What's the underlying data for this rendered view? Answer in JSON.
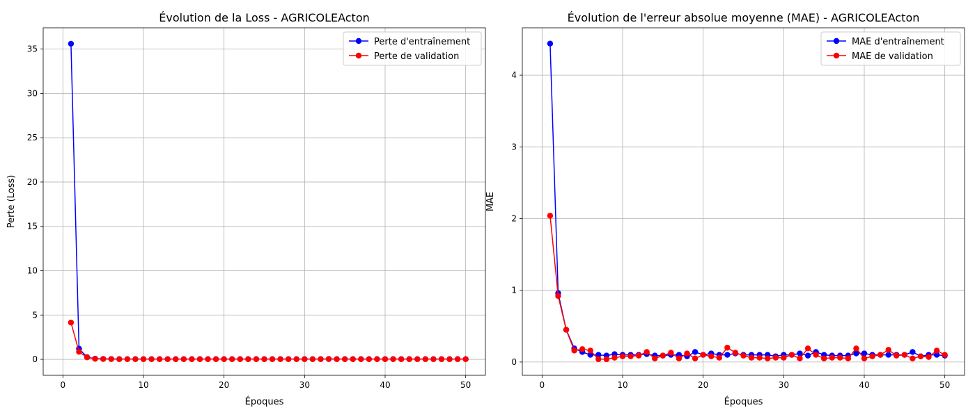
{
  "chart_data": [
    {
      "type": "line",
      "title": "Évolution de la Loss - AGRICOLEActon",
      "xlabel": "Époques",
      "ylabel": "Perte (Loss)",
      "xlim": [
        -2.45,
        52.45
      ],
      "ylim": [
        -1.8,
        37.4
      ],
      "xticks": [
        0,
        10,
        20,
        30,
        40,
        50
      ],
      "yticks": [
        0,
        5,
        10,
        15,
        20,
        25,
        30,
        35
      ],
      "grid": true,
      "legend": "top-right",
      "x": [
        1,
        2,
        3,
        4,
        5,
        6,
        7,
        8,
        9,
        10,
        11,
        12,
        13,
        14,
        15,
        16,
        17,
        18,
        19,
        20,
        21,
        22,
        23,
        24,
        25,
        26,
        27,
        28,
        29,
        30,
        31,
        32,
        33,
        34,
        35,
        36,
        37,
        38,
        39,
        40,
        41,
        42,
        43,
        44,
        45,
        46,
        47,
        48,
        49,
        50
      ],
      "series": [
        {
          "name": "Perte d'entraînement",
          "color": "#0000ff",
          "values": [
            35.6,
            1.2,
            0.25,
            0.08,
            0.05,
            0.04,
            0.03,
            0.03,
            0.03,
            0.03,
            0.03,
            0.03,
            0.03,
            0.03,
            0.03,
            0.03,
            0.03,
            0.03,
            0.03,
            0.03,
            0.03,
            0.03,
            0.03,
            0.03,
            0.03,
            0.03,
            0.03,
            0.03,
            0.03,
            0.03,
            0.03,
            0.03,
            0.03,
            0.03,
            0.03,
            0.03,
            0.03,
            0.03,
            0.03,
            0.03,
            0.03,
            0.03,
            0.03,
            0.03,
            0.03,
            0.03,
            0.03,
            0.03,
            0.03,
            0.03
          ]
        },
        {
          "name": "Perte de validation",
          "color": "#ff0000",
          "values": [
            4.15,
            0.85,
            0.22,
            0.06,
            0.04,
            0.03,
            0.02,
            0.02,
            0.02,
            0.02,
            0.02,
            0.02,
            0.02,
            0.02,
            0.02,
            0.02,
            0.02,
            0.02,
            0.02,
            0.02,
            0.02,
            0.02,
            0.02,
            0.02,
            0.02,
            0.02,
            0.02,
            0.02,
            0.02,
            0.02,
            0.02,
            0.02,
            0.05,
            0.02,
            0.02,
            0.02,
            0.02,
            0.02,
            0.02,
            0.02,
            0.02,
            0.02,
            0.02,
            0.02,
            0.02,
            0.02,
            0.02,
            0.02,
            0.02,
            0.02
          ]
        }
      ]
    },
    {
      "type": "line",
      "title": "Évolution de l'erreur absolue moyenne (MAE) - AGRICOLEActon",
      "xlabel": "Époques",
      "ylabel": "MAE",
      "xlim": [
        -2.45,
        52.45
      ],
      "ylim": [
        -0.185,
        4.66
      ],
      "xticks": [
        0,
        10,
        20,
        30,
        40,
        50
      ],
      "yticks": [
        0,
        1,
        2,
        3,
        4
      ],
      "grid": true,
      "legend": "top-right",
      "x": [
        1,
        2,
        3,
        4,
        5,
        6,
        7,
        8,
        9,
        10,
        11,
        12,
        13,
        14,
        15,
        16,
        17,
        18,
        19,
        20,
        21,
        22,
        23,
        24,
        25,
        26,
        27,
        28,
        29,
        30,
        31,
        32,
        33,
        34,
        35,
        36,
        37,
        38,
        39,
        40,
        41,
        42,
        43,
        44,
        45,
        46,
        47,
        48,
        49,
        50
      ],
      "series": [
        {
          "name": "MAE d'entraînement",
          "color": "#0000ff",
          "values": [
            4.44,
            0.96,
            0.45,
            0.19,
            0.14,
            0.1,
            0.1,
            0.09,
            0.11,
            0.1,
            0.1,
            0.1,
            0.11,
            0.09,
            0.09,
            0.1,
            0.1,
            0.08,
            0.14,
            0.1,
            0.12,
            0.1,
            0.1,
            0.12,
            0.1,
            0.1,
            0.1,
            0.1,
            0.08,
            0.1,
            0.1,
            0.12,
            0.09,
            0.14,
            0.1,
            0.09,
            0.09,
            0.09,
            0.12,
            0.12,
            0.1,
            0.1,
            0.1,
            0.1,
            0.1,
            0.14,
            0.08,
            0.1,
            0.1,
            0.09
          ]
        },
        {
          "name": "MAE de validation",
          "color": "#ff0000",
          "values": [
            2.04,
            0.92,
            0.45,
            0.16,
            0.18,
            0.16,
            0.04,
            0.04,
            0.06,
            0.08,
            0.08,
            0.09,
            0.14,
            0.05,
            0.09,
            0.13,
            0.05,
            0.12,
            0.05,
            0.1,
            0.08,
            0.06,
            0.2,
            0.13,
            0.09,
            0.06,
            0.06,
            0.05,
            0.06,
            0.06,
            0.1,
            0.05,
            0.19,
            0.1,
            0.05,
            0.06,
            0.06,
            0.05,
            0.19,
            0.05,
            0.08,
            0.1,
            0.17,
            0.09,
            0.1,
            0.05,
            0.08,
            0.07,
            0.16,
            0.1
          ]
        }
      ]
    }
  ]
}
